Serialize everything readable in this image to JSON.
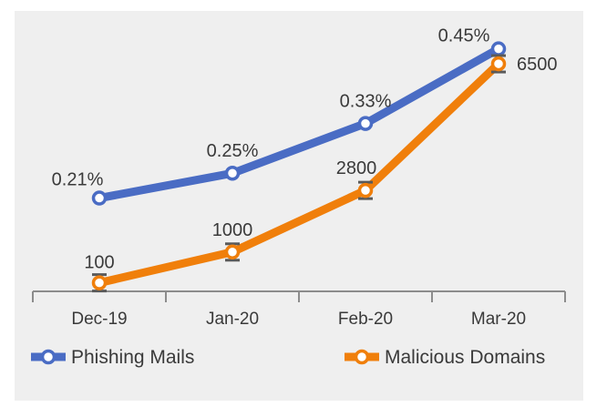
{
  "chart_data": {
    "type": "line",
    "categories": [
      "Dec-19",
      "Jan-20",
      "Feb-20",
      "Mar-20"
    ],
    "series": [
      {
        "name": "Phishing Mails",
        "values": [
          0.21,
          0.25,
          0.33,
          0.45
        ],
        "labels": [
          "0.21%",
          "0.25%",
          "0.33%",
          "0.45%"
        ],
        "color": "#4a6cc4",
        "ylim": [
          0.06,
          0.47
        ]
      },
      {
        "name": "Malicious Domains",
        "values": [
          100,
          1000,
          2800,
          6500
        ],
        "labels": [
          "100",
          "1000",
          "2800",
          "6500"
        ],
        "color": "#f07f0b",
        "ylim": [
          -150,
          7300
        ]
      }
    ],
    "legend": "bottom",
    "grid": false,
    "background": "#efefef"
  }
}
